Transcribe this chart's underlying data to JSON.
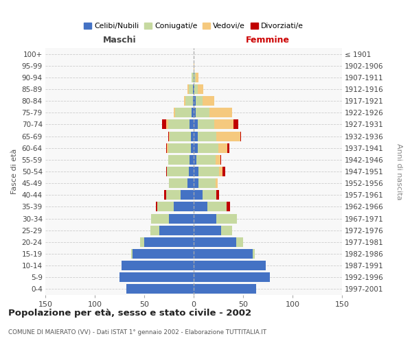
{
  "age_groups": [
    "0-4",
    "5-9",
    "10-14",
    "15-19",
    "20-24",
    "25-29",
    "30-34",
    "35-39",
    "40-44",
    "45-49",
    "50-54",
    "55-59",
    "60-64",
    "65-69",
    "70-74",
    "75-79",
    "80-84",
    "85-89",
    "90-94",
    "95-99",
    "100+"
  ],
  "birth_years": [
    "1997-2001",
    "1992-1996",
    "1987-1991",
    "1982-1986",
    "1977-1981",
    "1972-1976",
    "1967-1971",
    "1962-1966",
    "1957-1961",
    "1952-1956",
    "1947-1951",
    "1942-1946",
    "1937-1941",
    "1932-1936",
    "1927-1931",
    "1922-1926",
    "1917-1921",
    "1912-1916",
    "1907-1911",
    "1902-1906",
    "≤ 1901"
  ],
  "male_celibi": [
    68,
    75,
    73,
    62,
    50,
    35,
    25,
    20,
    13,
    6,
    5,
    4,
    3,
    3,
    4,
    2,
    1,
    1,
    0,
    0,
    0
  ],
  "male_coniugati": [
    0,
    0,
    0,
    1,
    4,
    9,
    18,
    17,
    15,
    19,
    22,
    22,
    23,
    21,
    22,
    17,
    7,
    4,
    2,
    0,
    0
  ],
  "male_vedovi": [
    0,
    0,
    0,
    0,
    0,
    0,
    0,
    0,
    0,
    0,
    0,
    0,
    1,
    1,
    2,
    1,
    2,
    1,
    0,
    0,
    0
  ],
  "male_divorziati": [
    0,
    0,
    0,
    0,
    0,
    0,
    0,
    1,
    2,
    0,
    1,
    0,
    1,
    1,
    4,
    0,
    0,
    0,
    0,
    0,
    0
  ],
  "female_nubili": [
    63,
    77,
    73,
    60,
    43,
    28,
    23,
    14,
    9,
    5,
    5,
    3,
    4,
    4,
    4,
    2,
    2,
    1,
    1,
    0,
    0
  ],
  "female_coniugate": [
    0,
    0,
    0,
    2,
    7,
    11,
    21,
    19,
    14,
    17,
    21,
    19,
    21,
    19,
    17,
    14,
    7,
    3,
    1,
    0,
    0
  ],
  "female_vedove": [
    0,
    0,
    0,
    0,
    0,
    0,
    0,
    0,
    0,
    2,
    3,
    5,
    9,
    24,
    19,
    23,
    12,
    6,
    3,
    1,
    0
  ],
  "female_divorziate": [
    0,
    0,
    0,
    0,
    0,
    0,
    0,
    4,
    3,
    0,
    3,
    1,
    2,
    1,
    5,
    0,
    0,
    0,
    0,
    0,
    0
  ],
  "color_celibi": "#4472c4",
  "color_coniugati": "#c6d9a0",
  "color_vedovi": "#f5c97e",
  "color_divorziati": "#c00000",
  "xlim": 150,
  "title": "Popolazione per età, sesso e stato civile - 2002",
  "subtitle": "COMUNE DI MAIERATO (VV) - Dati ISTAT 1° gennaio 2002 - Elaborazione TUTTITALIA.IT",
  "ylabel_left": "Fasce di età",
  "ylabel_right": "Anni di nascita",
  "xlabel_left": "Maschi",
  "xlabel_right": "Femmine"
}
